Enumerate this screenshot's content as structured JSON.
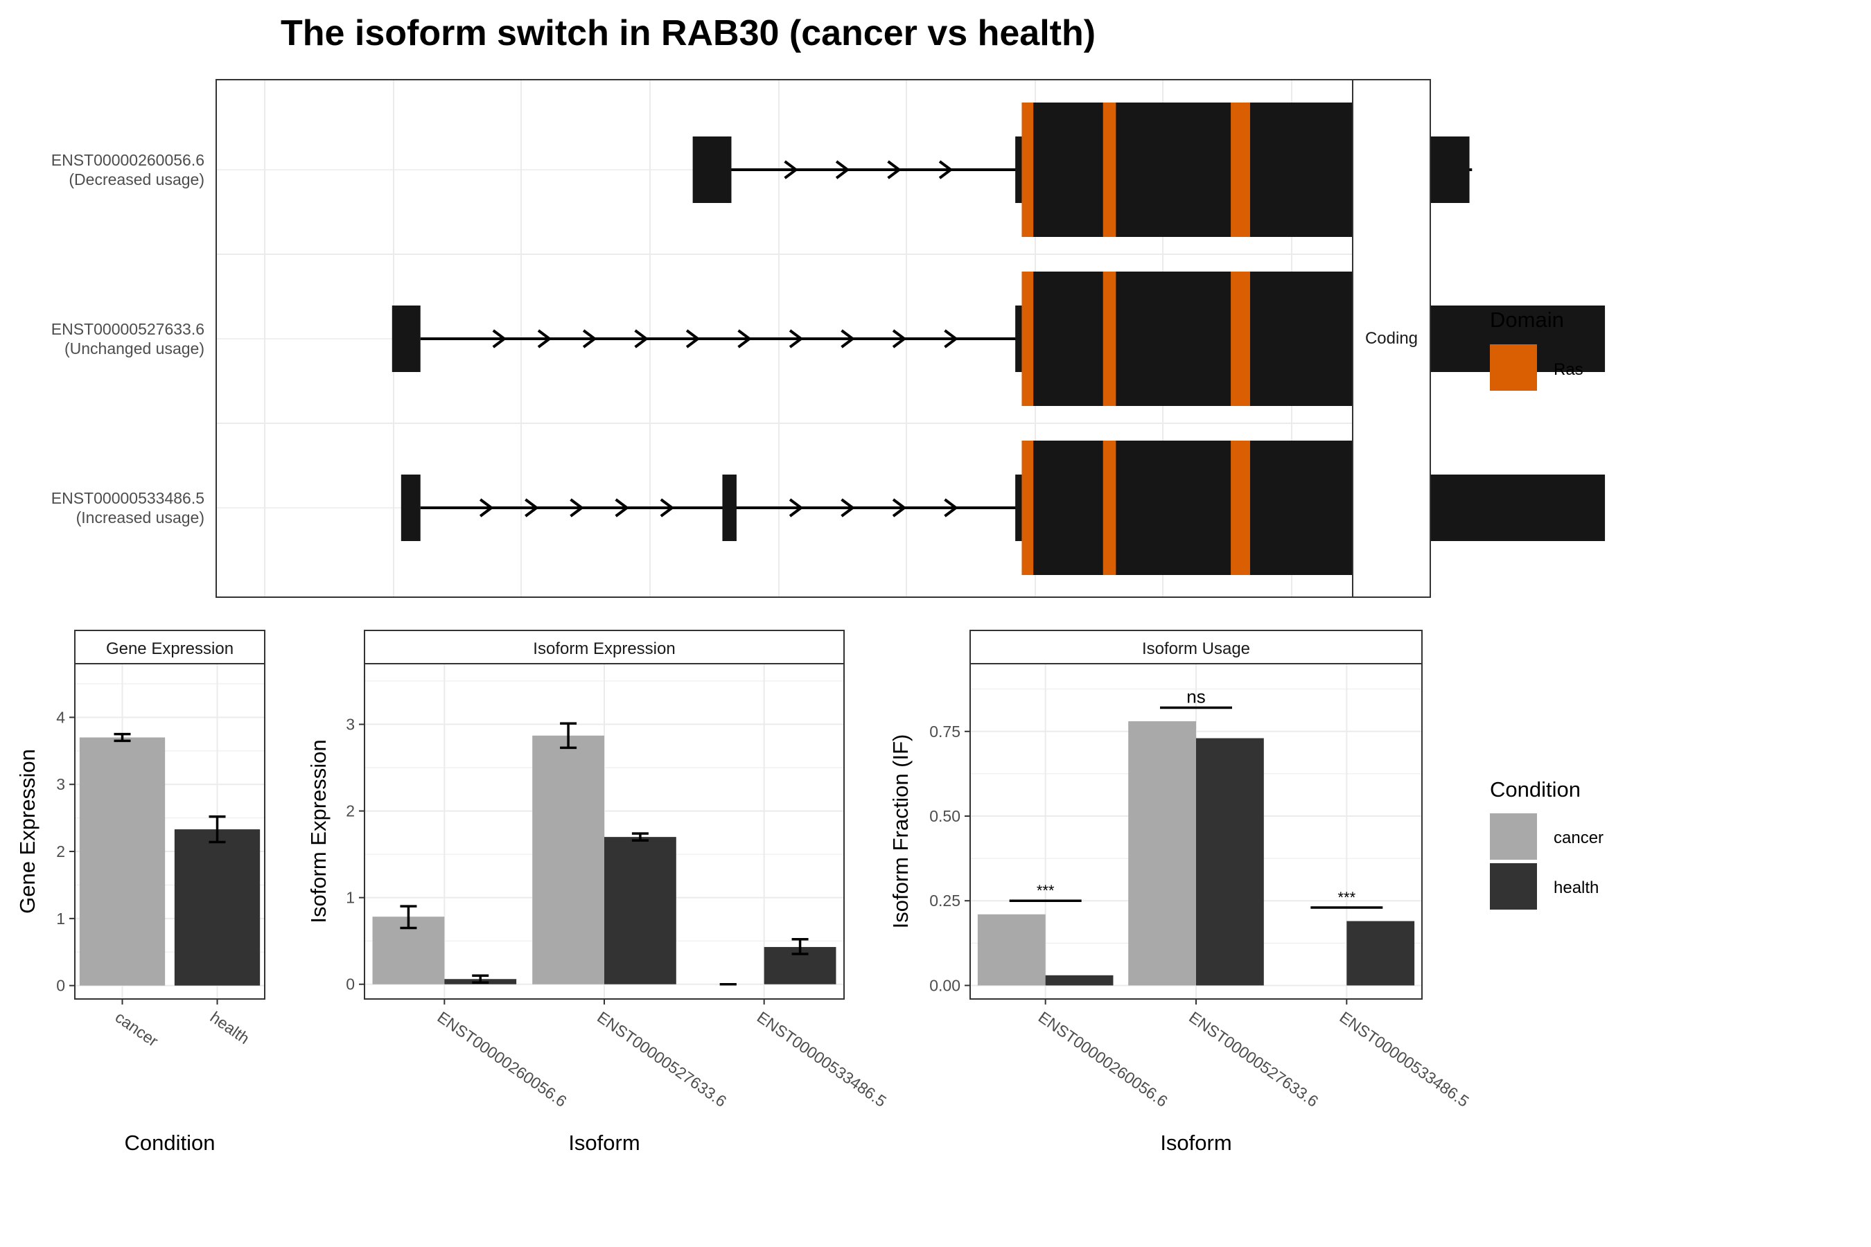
{
  "title": "The isoform switch in RAB30 (cancer vs health)",
  "colors": {
    "ras": "#D95F02",
    "cancer": "#A9A9A9",
    "health": "#333333",
    "exon": "#161616",
    "grid": "#EBEBEB",
    "strip": "#FFFFFF",
    "border": "#333333"
  },
  "structure": {
    "strip_label": "Coding",
    "transcripts": [
      {
        "id": "ENST00000260056.6",
        "usage": "(Decreased usage)",
        "exons": [
          [
            433,
            463
          ],
          [
            683,
            690
          ],
          [
            690,
            1035
          ]
        ],
        "intron": [
          463,
          1037
        ],
        "arrows": [
          513,
          553,
          593,
          633,
          711,
          751,
          801,
          851,
          901
        ]
      },
      {
        "id": "ENST00000527633.6",
        "usage": "(Unchanged usage)",
        "exons": [
          [
            200,
            222
          ],
          [
            683,
            690
          ],
          [
            690,
            1140
          ]
        ],
        "intron": [
          222,
          1037
        ],
        "arrows": [
          287,
          322,
          357,
          397,
          437,
          477,
          517,
          557,
          597,
          637,
          711,
          751,
          801,
          851,
          901
        ]
      },
      {
        "id": "ENST00000533486.5",
        "usage": "(Increased usage)",
        "exons": [
          [
            207,
            222
          ],
          [
            456,
            467
          ],
          [
            683,
            690
          ],
          [
            690,
            1140
          ]
        ],
        "intron": [
          222,
          1037
        ],
        "arrows": [
          277,
          312,
          347,
          382,
          417,
          517,
          557,
          597,
          637,
          711,
          751,
          801,
          851,
          901
        ]
      }
    ],
    "domains": [
      [
        688,
        697
      ],
      [
        751,
        761
      ],
      [
        850,
        865
      ],
      [
        946,
        960
      ]
    ],
    "legend": {
      "title": "Domain",
      "items": [
        {
          "label": "Ras",
          "color_key": "ras"
        }
      ]
    }
  },
  "chart_data": [
    {
      "type": "bar",
      "panel": "Gene Expression",
      "categories": [
        "cancer",
        "health"
      ],
      "values": [
        3.7,
        2.33
      ],
      "errors": [
        [
          3.65,
          3.75
        ],
        [
          2.14,
          2.52
        ]
      ],
      "xlabel": "Condition",
      "ylabel": "Gene Expression",
      "ylim": [
        -0.2,
        4.8
      ],
      "yticks": [
        "0",
        "1",
        "2",
        "3",
        "4"
      ],
      "ytick_values": [
        0,
        1,
        2,
        3,
        4
      ]
    },
    {
      "type": "bar",
      "panel": "Isoform Expression",
      "categories": [
        "ENST00000260056.6",
        "ENST00000527633.6",
        "ENST00000533486.5"
      ],
      "series": [
        {
          "name": "cancer",
          "values": [
            0.78,
            2.87,
            0.0
          ],
          "errors": [
            [
              0.65,
              0.9
            ],
            [
              2.73,
              3.01
            ],
            [
              0.0,
              0.0
            ]
          ]
        },
        {
          "name": "health",
          "values": [
            0.06,
            1.7,
            0.43
          ],
          "errors": [
            [
              0.02,
              0.1
            ],
            [
              1.66,
              1.74
            ],
            [
              0.35,
              0.52
            ]
          ]
        }
      ],
      "xlabel": "Isoform",
      "ylabel": "Isoform Expression",
      "ylim": [
        -0.17,
        3.7
      ],
      "yticks": [
        "0",
        "1",
        "2",
        "3"
      ],
      "ytick_values": [
        0,
        1,
        2,
        3
      ]
    },
    {
      "type": "bar",
      "panel": "Isoform Usage",
      "categories": [
        "ENST00000260056.6",
        "ENST00000527633.6",
        "ENST00000533486.5"
      ],
      "series": [
        {
          "name": "cancer",
          "values": [
            0.21,
            0.78,
            0.0
          ]
        },
        {
          "name": "health",
          "values": [
            0.03,
            0.73,
            0.19
          ]
        }
      ],
      "significance": [
        "***",
        "ns",
        "***"
      ],
      "significance_y": [
        0.25,
        0.82,
        0.23
      ],
      "xlabel": "Isoform",
      "ylabel": "Isoform Fraction (IF)",
      "ylim": [
        -0.04,
        0.95
      ],
      "yticks": [
        "0.00",
        "0.25",
        "0.50",
        "0.75"
      ],
      "ytick_values": [
        0,
        0.25,
        0.5,
        0.75
      ]
    }
  ],
  "condition_legend": {
    "title": "Condition",
    "items": [
      {
        "label": "cancer",
        "color_key": "cancer"
      },
      {
        "label": "health",
        "color_key": "health"
      }
    ]
  }
}
